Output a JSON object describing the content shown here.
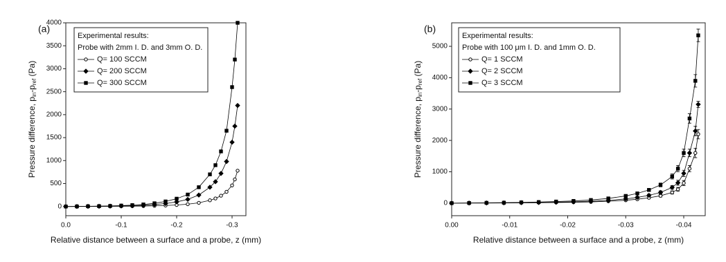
{
  "chart_data": [
    {
      "type": "line",
      "panel_label": "(a)",
      "x_label": "Relative distance between a surface and a probe, z (mm)",
      "y_label": [
        "Pressure difference, p",
        "in",
        "-p",
        "ref",
        " (Pa)"
      ],
      "legend_title": [
        "Experimental results:",
        "Probe with 2mm I. D. and 3mm O. D."
      ],
      "xlim": [
        0,
        -0.325
      ],
      "xticks": [
        {
          "value": 0,
          "label": "0.0"
        },
        -0.1,
        -0.2,
        -0.3
      ],
      "ylim": [
        -200,
        4000
      ],
      "yticks": [
        0,
        500,
        1000,
        1500,
        2000,
        2500,
        3000,
        3500,
        4000
      ],
      "x": [
        0,
        -0.02,
        -0.04,
        -0.06,
        -0.08,
        -0.1,
        -0.12,
        -0.14,
        -0.16,
        -0.18,
        -0.2,
        -0.22,
        -0.24,
        -0.26,
        -0.27,
        -0.28,
        -0.29,
        -0.3,
        -0.305,
        -0.31
      ],
      "series": [
        {
          "name": "Q= 100 SCCM",
          "color": "#000000",
          "marker": "circle-open",
          "values": [
            0,
            0,
            1,
            2,
            3,
            5,
            7,
            10,
            15,
            22,
            33,
            50,
            80,
            135,
            175,
            235,
            320,
            460,
            590,
            780
          ]
        },
        {
          "name": "Q= 200 SCCM",
          "color": "#000000",
          "marker": "diamond",
          "values": [
            0,
            1,
            3,
            5,
            8,
            12,
            18,
            27,
            42,
            65,
            100,
            155,
            250,
            420,
            540,
            720,
            980,
            1400,
            1750,
            2200
          ]
        },
        {
          "name": "Q= 300 SCCM",
          "color": "#000000",
          "marker": "square",
          "values": [
            0,
            2,
            5,
            8,
            12,
            20,
            30,
            45,
            70,
            110,
            170,
            260,
            420,
            700,
            900,
            1200,
            1650,
            2600,
            3200,
            4000
          ]
        }
      ]
    },
    {
      "type": "line",
      "panel_label": "(b)",
      "x_label": "Relative distance between a surface and a probe, z (mm)",
      "y_label": [
        "Pressure difference, p",
        "in",
        "-p",
        "ref",
        " (Pa)"
      ],
      "legend_title": [
        "Experimental results:",
        "Probe with 100 μm I. D. and 1mm O. D."
      ],
      "xlim": [
        0,
        -0.0437
      ],
      "xticks": [
        {
          "value": 0,
          "label": "0.00"
        },
        -0.01,
        -0.02,
        -0.03,
        -0.04
      ],
      "ylim": [
        -400,
        5750
      ],
      "yticks": [
        0,
        1000,
        2000,
        3000,
        4000,
        5000
      ],
      "x": [
        0,
        -0.003,
        -0.006,
        -0.009,
        -0.012,
        -0.015,
        -0.018,
        -0.021,
        -0.024,
        -0.027,
        -0.03,
        -0.032,
        -0.034,
        -0.036,
        -0.038,
        -0.039,
        -0.04,
        -0.041,
        -0.042,
        -0.0425
      ],
      "series": [
        {
          "name": "Q= 1 SCCM",
          "color": "#000000",
          "marker": "circle-open",
          "values": [
            0,
            2,
            4,
            6,
            10,
            14,
            20,
            28,
            40,
            60,
            92,
            125,
            170,
            235,
            340,
            440,
            640,
            1100,
            1600,
            2200
          ],
          "errors": [
            10,
            10,
            10,
            10,
            10,
            10,
            10,
            10,
            15,
            15,
            20,
            25,
            30,
            40,
            50,
            60,
            80,
            100,
            150,
            150
          ]
        },
        {
          "name": "Q= 2 SCCM",
          "color": "#000000",
          "marker": "diamond",
          "values": [
            0,
            3,
            6,
            9,
            15,
            21,
            30,
            41,
            59,
            88,
            135,
            183,
            248,
            342,
            500,
            650,
            950,
            1600,
            2300,
            3150
          ],
          "errors": [
            10,
            10,
            10,
            10,
            10,
            10,
            10,
            15,
            15,
            20,
            25,
            30,
            40,
            50,
            60,
            80,
            100,
            120,
            150,
            100
          ]
        },
        {
          "name": "Q= 3 SCCM",
          "color": "#000000",
          "marker": "square",
          "values": [
            0,
            5,
            10,
            15,
            25,
            35,
            50,
            70,
            100,
            150,
            230,
            310,
            420,
            580,
            850,
            1100,
            1600,
            2700,
            3900,
            5350
          ],
          "errors": [
            10,
            10,
            10,
            10,
            10,
            10,
            15,
            15,
            20,
            25,
            30,
            40,
            50,
            60,
            80,
            100,
            120,
            150,
            200,
            200
          ]
        }
      ]
    }
  ]
}
